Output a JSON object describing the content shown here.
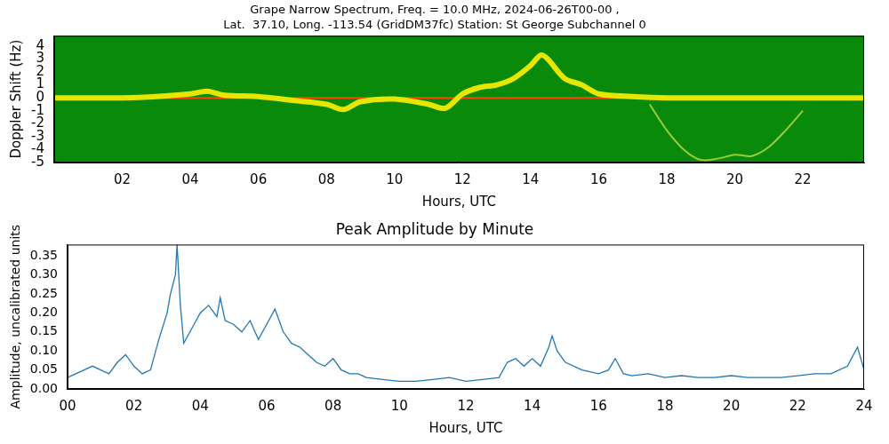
{
  "chart_data": [
    {
      "type": "line",
      "title": "Grape Narrow Spectrum, Freq. = 10.0 MHz, 2024-06-26T00-00 ,",
      "subtitle": "Lat.  37.10, Long. -113.54 (GridDM37fc) Station: St George Subchannel 0",
      "x_label": "Hours, UTC",
      "y_label": "Doppler Shift (Hz)",
      "xlim": [
        0,
        23.8
      ],
      "xticks": [
        {
          "value": 2,
          "label": "02"
        },
        {
          "value": 4,
          "label": "04"
        },
        {
          "value": 6,
          "label": "06"
        },
        {
          "value": 8,
          "label": "08"
        },
        {
          "value": 10,
          "label": "10"
        },
        {
          "value": 12,
          "label": "12"
        },
        {
          "value": 14,
          "label": "14"
        },
        {
          "value": 16,
          "label": "16"
        },
        {
          "value": 18,
          "label": "18"
        },
        {
          "value": 20,
          "label": "20"
        },
        {
          "value": 22,
          "label": "22"
        }
      ],
      "ylim": [
        -5,
        4.8
      ],
      "yticks": [
        -5,
        -4,
        -3,
        -2,
        -1,
        0,
        1,
        2,
        3,
        4
      ],
      "grid": false,
      "series": [
        {
          "color": "#e6e600",
          "x": [
            0,
            1,
            2,
            3,
            4,
            4.5,
            5,
            6,
            7,
            8,
            8.5,
            9,
            10,
            11,
            11.5,
            12,
            12.5,
            13,
            13.5,
            14,
            14.3,
            14.5,
            15,
            15.5,
            16,
            17,
            18,
            20,
            22,
            23.8
          ],
          "values": [
            0,
            0,
            0,
            0.1,
            0.3,
            0.5,
            0.2,
            0.1,
            -0.2,
            -0.5,
            -0.9,
            -0.3,
            -0.1,
            -0.5,
            -0.8,
            0.3,
            0.8,
            1.0,
            1.5,
            2.5,
            3.3,
            3.0,
            1.5,
            1.0,
            0.3,
            0.1,
            0,
            0,
            0,
            0
          ]
        },
        {
          "color": "#9acd32",
          "x": [
            17.5,
            18,
            18.5,
            19,
            19.5,
            20,
            20.5,
            21,
            21.5,
            22
          ],
          "values": [
            -0.5,
            -2.5,
            -4,
            -4.8,
            -4.7,
            -4.4,
            -4.5,
            -3.8,
            -2.5,
            -1
          ]
        },
        {
          "color": "#ff4500",
          "x": [
            0,
            23.8
          ],
          "values": [
            0,
            0
          ]
        }
      ]
    },
    {
      "type": "line",
      "title": "Peak Amplitude by Minute",
      "x_label": "Hours, UTC",
      "y_label": "Amplitude, uncalibrated units",
      "color": "#1f77b4",
      "xlim": [
        0,
        24
      ],
      "xticks": [
        {
          "value": 0,
          "label": "00"
        },
        {
          "value": 2,
          "label": "02"
        },
        {
          "value": 4,
          "label": "04"
        },
        {
          "value": 6,
          "label": "06"
        },
        {
          "value": 8,
          "label": "08"
        },
        {
          "value": 10,
          "label": "10"
        },
        {
          "value": 12,
          "label": "12"
        },
        {
          "value": 14,
          "label": "14"
        },
        {
          "value": 16,
          "label": "16"
        },
        {
          "value": 18,
          "label": "18"
        },
        {
          "value": 20,
          "label": "20"
        },
        {
          "value": 22,
          "label": "22"
        },
        {
          "value": 24,
          "label": "24"
        }
      ],
      "ylim": [
        0,
        0.38
      ],
      "yticks": [
        {
          "value": 0,
          "label": "0.00"
        },
        {
          "value": 0.05,
          "label": "0.05"
        },
        {
          "value": 0.1,
          "label": "0.10"
        },
        {
          "value": 0.15,
          "label": "0.15"
        },
        {
          "value": 0.2,
          "label": "0.20"
        },
        {
          "value": 0.25,
          "label": "0.25"
        },
        {
          "value": 0.3,
          "label": "0.30"
        },
        {
          "value": 0.35,
          "label": "0.35"
        }
      ],
      "grid": false,
      "x": [
        0,
        0.25,
        0.5,
        0.75,
        1.0,
        1.25,
        1.5,
        1.75,
        2.0,
        2.25,
        2.5,
        2.75,
        3.0,
        3.1,
        3.25,
        3.3,
        3.4,
        3.5,
        3.75,
        4.0,
        4.25,
        4.5,
        4.6,
        4.75,
        5.0,
        5.25,
        5.5,
        5.75,
        6.0,
        6.25,
        6.5,
        6.75,
        7.0,
        7.25,
        7.5,
        7.75,
        8.0,
        8.25,
        8.5,
        8.75,
        9.0,
        9.5,
        10,
        10.5,
        11,
        11.5,
        12,
        12.5,
        13,
        13.25,
        13.5,
        13.75,
        14.0,
        14.25,
        14.5,
        14.6,
        14.75,
        15.0,
        15.5,
        16.0,
        16.3,
        16.5,
        16.75,
        17,
        17.5,
        18,
        18.5,
        19,
        19.5,
        20,
        20.5,
        21,
        21.5,
        22,
        22.5,
        23,
        23.5,
        23.8,
        24
      ],
      "values": [
        0.03,
        0.04,
        0.05,
        0.06,
        0.05,
        0.04,
        0.07,
        0.09,
        0.06,
        0.04,
        0.05,
        0.13,
        0.2,
        0.25,
        0.3,
        0.38,
        0.22,
        0.12,
        0.16,
        0.2,
        0.22,
        0.19,
        0.24,
        0.18,
        0.17,
        0.15,
        0.18,
        0.13,
        0.17,
        0.21,
        0.15,
        0.12,
        0.11,
        0.09,
        0.07,
        0.06,
        0.08,
        0.05,
        0.04,
        0.04,
        0.03,
        0.025,
        0.02,
        0.02,
        0.025,
        0.03,
        0.02,
        0.025,
        0.03,
        0.07,
        0.08,
        0.06,
        0.08,
        0.06,
        0.11,
        0.14,
        0.1,
        0.07,
        0.05,
        0.04,
        0.05,
        0.08,
        0.04,
        0.035,
        0.04,
        0.03,
        0.035,
        0.03,
        0.03,
        0.035,
        0.03,
        0.03,
        0.03,
        0.035,
        0.04,
        0.04,
        0.06,
        0.11,
        0.05
      ]
    }
  ]
}
